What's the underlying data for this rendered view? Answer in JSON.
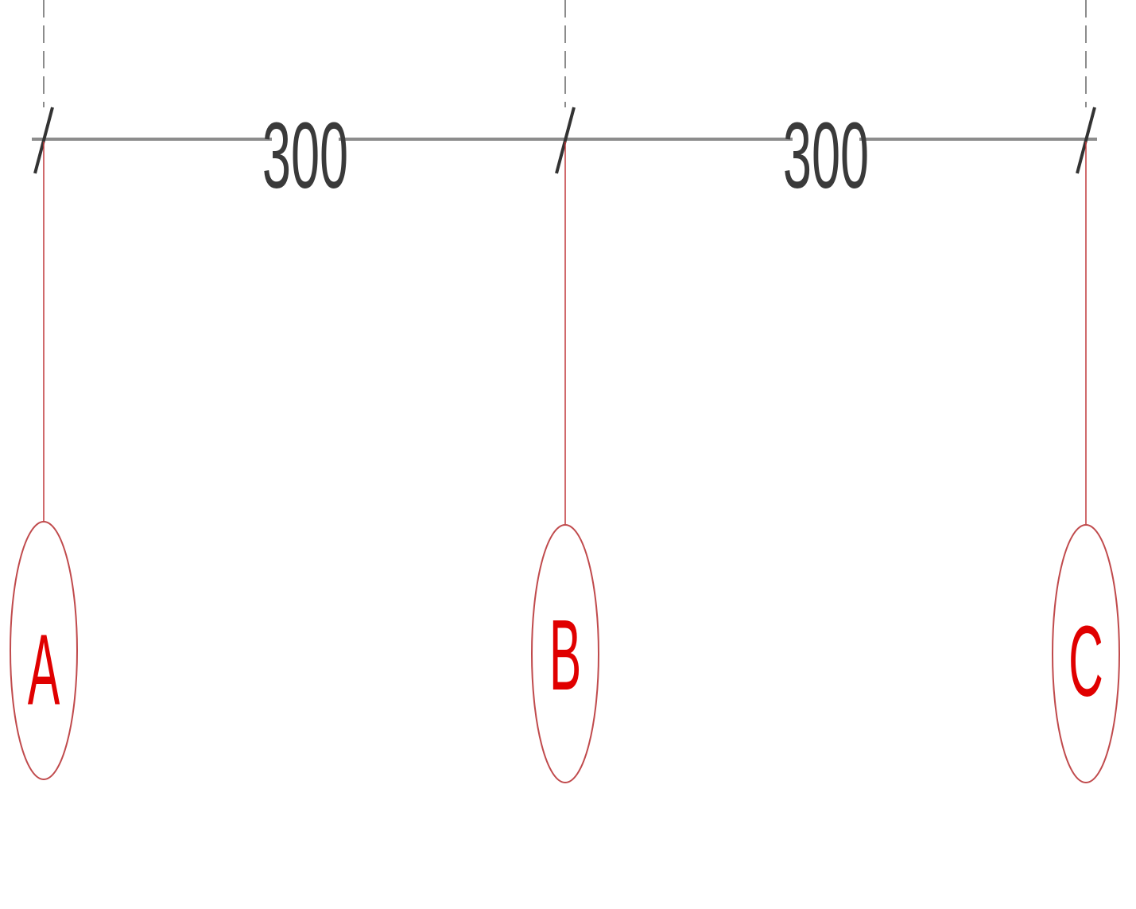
{
  "drawing": {
    "dimensions": [
      {
        "label": "300"
      },
      {
        "label": "300"
      }
    ],
    "grid_lines": [
      {
        "label": "A"
      },
      {
        "label": "B"
      },
      {
        "label": "C"
      }
    ]
  },
  "colors": {
    "dimension_line": "#8c8c8c",
    "dimension_text": "#3a3a3a",
    "grid_line": "#c0393b",
    "grid_bubble": "#c04a4c",
    "grid_label": "#e00000",
    "background": "#ffffff"
  }
}
